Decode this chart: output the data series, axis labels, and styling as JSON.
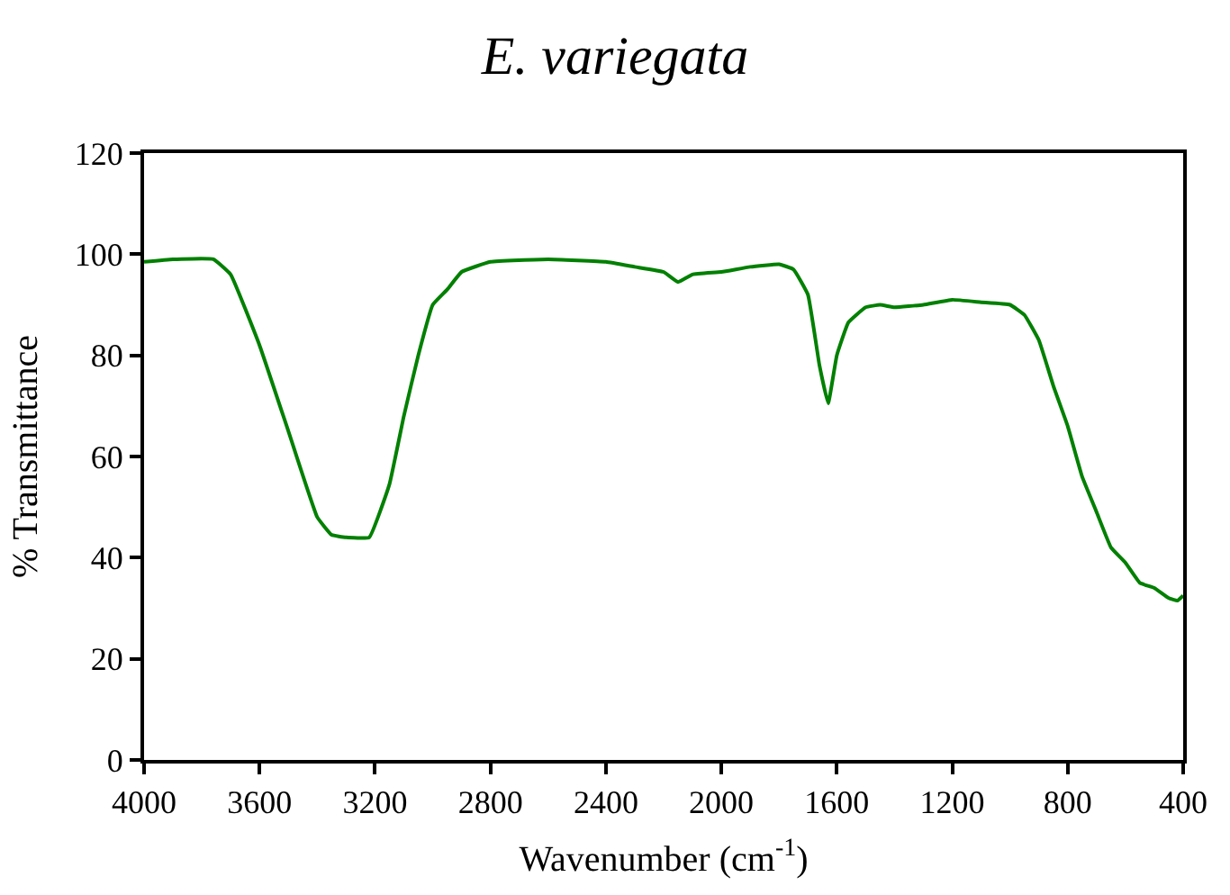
{
  "chart_data": {
    "type": "line",
    "title": "E. variegata",
    "xlabel": "Wavenumber (cm$^{-1}$)",
    "ylabel": "% Transmittance",
    "x": [
      4000,
      3900,
      3760,
      3700,
      3600,
      3500,
      3400,
      3350,
      3300,
      3220,
      3150,
      3100,
      3050,
      3000,
      2950,
      2900,
      2800,
      2600,
      2400,
      2300,
      2200,
      2150,
      2100,
      2000,
      1900,
      1800,
      1750,
      1700,
      1660,
      1630,
      1600,
      1560,
      1500,
      1450,
      1400,
      1300,
      1200,
      1100,
      1000,
      950,
      900,
      850,
      800,
      750,
      700,
      650,
      600,
      550,
      500,
      450,
      420,
      400
    ],
    "series": [
      {
        "color": "#008000",
        "values": [
          98.5,
          99,
          99,
          96,
          82,
          65,
          48,
          44.5,
          44,
          44,
          54.5,
          68,
          80,
          90,
          93,
          96.5,
          98.5,
          99,
          98.5,
          97.5,
          96.5,
          94.5,
          96,
          96.5,
          97.5,
          98,
          97,
          92,
          78,
          70.5,
          80,
          86.5,
          89.5,
          90,
          89.5,
          90,
          91,
          90.5,
          90,
          88,
          83,
          74,
          66,
          56,
          49,
          42,
          39,
          35,
          34,
          32,
          31.5,
          32.5
        ]
      }
    ],
    "xlim": [
      4000,
      400
    ],
    "xticks": [
      4000,
      3600,
      3200,
      2800,
      2400,
      2000,
      1600,
      1200,
      800,
      400
    ],
    "ylim": [
      0,
      120
    ],
    "yticks": [
      0,
      20,
      40,
      60,
      80,
      100,
      120
    ],
    "marker": "none",
    "line_style": "solid"
  }
}
